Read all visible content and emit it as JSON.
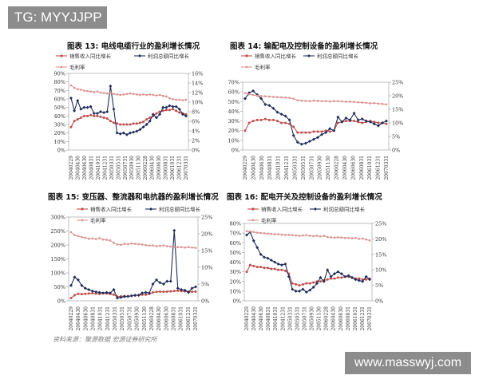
{
  "watermark_top": "TG: MYYJJPP",
  "watermark_bottom": "www.masswyj.com",
  "source_note": "资料来源：聚源数据 宏源证券研究所",
  "legend": {
    "sales": "销售收入同比增长",
    "profit": "利润总额同比增长",
    "margin": "毛利率"
  },
  "colors": {
    "sales": "#c0504d",
    "profit": "#1f2d5a",
    "margin": "#d99694"
  },
  "x_ticks": [
    "2004/02/29",
    "2004/04/30",
    "2004/06/30",
    "2004/08/31",
    "2004/10/31",
    "2004/12/31",
    "2005/03/31",
    "2005/05/31",
    "2005/07/31",
    "2005/09/30",
    "2005/11/30",
    "2006/02/28",
    "2006/04/30",
    "2006/06/30",
    "2006/08/31",
    "2006/10/31",
    "2006/12/31",
    "2007/03/31"
  ],
  "chart_data": [
    {
      "type": "line",
      "title": "图表 13:  电线电缆行业的盈利增长情况",
      "left_axis": {
        "ticks": [
          "0%",
          "10%",
          "20%",
          "30%",
          "40%",
          "50%",
          "60%",
          "70%",
          "80%",
          "90%"
        ],
        "ylim": [
          0,
          90
        ]
      },
      "right_axis": {
        "ticks": [
          "0%",
          "2%",
          "4%",
          "6%",
          "8%",
          "10%",
          "12%",
          "14%",
          "16%"
        ],
        "ylim": [
          0,
          16
        ]
      },
      "series": [
        {
          "name": "销售收入同比增长",
          "axis": "left",
          "values": [
            27,
            34,
            36,
            38,
            40,
            40,
            41,
            40,
            40,
            39,
            38,
            37,
            34,
            32,
            31,
            30,
            30,
            30,
            30,
            31,
            31,
            32,
            33,
            36,
            38,
            40,
            43,
            45,
            46,
            47,
            47,
            48,
            46,
            44,
            43,
            42
          ]
        },
        {
          "name": "利润总额同比增长",
          "axis": "left",
          "values": [
            61,
            46,
            58,
            48,
            50,
            50,
            51,
            43,
            43,
            45,
            44,
            45,
            75,
            48,
            20,
            19,
            20,
            18,
            20,
            21,
            22,
            24,
            27,
            30,
            34,
            42,
            38,
            42,
            50,
            50,
            52,
            51,
            51,
            48,
            42,
            40
          ]
        },
        {
          "name": "毛利率",
          "axis": "right",
          "values": [
            13.5,
            13.0,
            12.7,
            12.6,
            12.4,
            12.3,
            12.2,
            12.1,
            12.2,
            12.0,
            11.9,
            11.8,
            12.0,
            11.7,
            11.6,
            11.5,
            11.6,
            11.7,
            11.8,
            11.7,
            11.6,
            11.5,
            11.6,
            11.5,
            11.6,
            11.5,
            11.4,
            11.5,
            11.3,
            11.2,
            10.8,
            10.6,
            10.5,
            10.5,
            10.4,
            10.5
          ]
        }
      ]
    },
    {
      "type": "line",
      "title": "图表 14:  输配电及控制设备的盈利增长情况",
      "left_axis": {
        "ticks": [
          "0%",
          "10%",
          "20%",
          "30%",
          "40%",
          "50%",
          "60%",
          "70%"
        ],
        "ylim": [
          0,
          70
        ]
      },
      "right_axis": {
        "ticks": [
          "0%",
          "5%",
          "10%",
          "15%",
          "20%",
          "25%"
        ],
        "ylim": [
          0,
          25
        ]
      },
      "series": [
        {
          "name": "销售收入同比增长",
          "axis": "left",
          "values": [
            20,
            28,
            30,
            31,
            31,
            32,
            31,
            31,
            30,
            28,
            28,
            27,
            24,
            18,
            18,
            18,
            18,
            19,
            19,
            19,
            20,
            19,
            20,
            28,
            29,
            30,
            30,
            30,
            29,
            28,
            29,
            30,
            29,
            28,
            28,
            27
          ]
        },
        {
          "name": "利润总额同比增长",
          "axis": "left",
          "values": [
            53,
            59,
            61,
            57,
            53,
            47,
            46,
            43,
            39,
            37,
            35,
            31,
            15,
            8,
            6,
            7,
            9,
            11,
            13,
            16,
            18,
            22,
            20,
            34,
            29,
            33,
            31,
            38,
            31,
            32,
            30,
            29,
            27,
            25,
            28,
            30
          ]
        },
        {
          "name": "毛利率",
          "axis": "right",
          "values": [
            21.0,
            20.5,
            20.3,
            20.0,
            19.9,
            19.8,
            19.7,
            19.6,
            19.5,
            19.4,
            19.3,
            19.2,
            18.9,
            18.3,
            18.2,
            18.1,
            18.0,
            18.2,
            18.1,
            18.0,
            18.0,
            17.9,
            18.0,
            18.0,
            17.9,
            17.8,
            17.8,
            17.7,
            17.6,
            17.5,
            17.4,
            17.2,
            17.3,
            17.1,
            17.0,
            16.8
          ]
        }
      ]
    },
    {
      "type": "line",
      "title": "图表 15:  变压器、整流器和电抗器的盈利增长情况",
      "left_axis": {
        "ticks": [
          "0%",
          "50%",
          "100%",
          "150%",
          "200%",
          "250%",
          "300%"
        ],
        "ylim": [
          0,
          300
        ]
      },
      "right_axis": {
        "ticks": [
          "0%",
          "5%",
          "10%",
          "15%",
          "20%",
          "25%"
        ],
        "ylim": [
          0,
          25
        ]
      },
      "series": [
        {
          "name": "销售收入同比增长",
          "axis": "left",
          "values": [
            10,
            20,
            25,
            24,
            25,
            26,
            27,
            26,
            25,
            27,
            26,
            25,
            22,
            15,
            16,
            17,
            16,
            18,
            19,
            20,
            22,
            22,
            25,
            30,
            32,
            33,
            32,
            33,
            34,
            35,
            36,
            35,
            34,
            33,
            32,
            33
          ]
        },
        {
          "name": "利润总额同比增长",
          "axis": "left",
          "values": [
            55,
            85,
            75,
            55,
            45,
            40,
            35,
            32,
            30,
            28,
            30,
            28,
            40,
            10,
            12,
            15,
            16,
            18,
            20,
            20,
            28,
            30,
            28,
            60,
            75,
            65,
            60,
            70,
            70,
            252,
            45,
            40,
            38,
            30,
            45,
            50
          ]
        },
        {
          "name": "毛利率",
          "axis": "right",
          "values": [
            20.5,
            19.6,
            19.3,
            19.0,
            18.8,
            18.5,
            18.6,
            18.4,
            18.7,
            18.3,
            18.2,
            18.0,
            17.3,
            16.8,
            16.7,
            17.0,
            16.9,
            17.1,
            17.0,
            16.9,
            16.8,
            16.6,
            16.5,
            16.5,
            16.3,
            16.4,
            16.5,
            16.3,
            16.2,
            16.1,
            16.0,
            16.0,
            15.9,
            16.0,
            15.9,
            15.8
          ]
        }
      ]
    },
    {
      "type": "line",
      "title": "图表 16:  配电开关及控制设备的盈利增长情况",
      "left_axis": {
        "ticks": [
          "0%",
          "10%",
          "20%",
          "30%",
          "40%",
          "50%",
          "60%",
          "70%",
          "80%"
        ],
        "ylim": [
          0,
          80
        ]
      },
      "right_axis": {
        "ticks": [
          "0%",
          "5%",
          "10%",
          "15%",
          "20%",
          "25%"
        ],
        "ylim": [
          0,
          25
        ]
      },
      "series": [
        {
          "name": "销售收入同比增长",
          "axis": "left",
          "values": [
            30,
            37,
            36,
            35,
            35,
            34,
            34,
            33,
            33,
            32,
            32,
            31,
            28,
            18,
            17,
            16,
            17,
            18,
            18,
            19,
            20,
            20,
            21,
            22,
            23,
            23,
            24,
            24,
            25,
            25,
            24,
            23,
            23,
            22,
            22,
            23
          ]
        },
        {
          "name": "利润总额同比增长",
          "axis": "left",
          "values": [
            68,
            71,
            62,
            55,
            48,
            45,
            44,
            42,
            40,
            38,
            37,
            38,
            25,
            12,
            10,
            10,
            12,
            9,
            11,
            14,
            18,
            24,
            20,
            32,
            25,
            28,
            30,
            28,
            25,
            26,
            24,
            22,
            21,
            20,
            25,
            22
          ]
        },
        {
          "name": "毛利率",
          "axis": "right",
          "values": [
            22.5,
            22.4,
            22.2,
            22.0,
            21.9,
            21.8,
            21.7,
            21.6,
            21.5,
            21.5,
            21.4,
            21.3,
            21.3,
            21.2,
            21.1,
            21.0,
            21.1,
            21.2,
            21.0,
            20.9,
            21.0,
            20.8,
            21.0,
            20.6,
            20.5,
            20.4,
            20.5,
            20.4,
            20.3,
            20.3,
            20.2,
            20.3,
            20.0,
            20.1,
            19.8,
            19.5
          ]
        }
      ]
    }
  ]
}
